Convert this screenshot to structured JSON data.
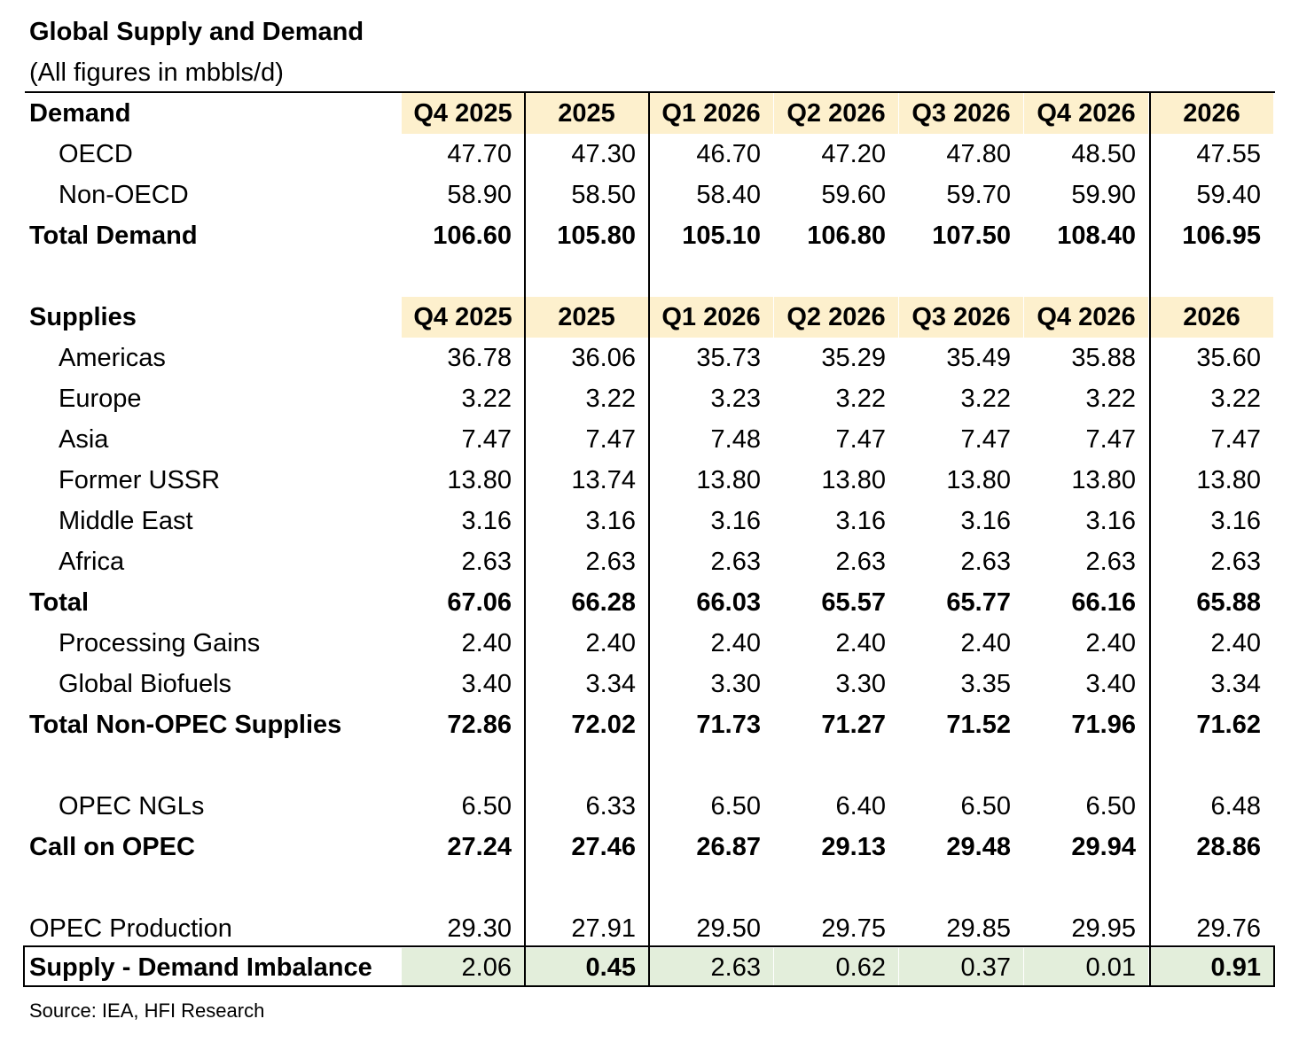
{
  "title": "Global Supply and Demand",
  "subtitle": "(All figures in mbbls/d)",
  "columns": [
    "Q4 2025",
    "2025",
    "Q1 2026",
    "Q2 2026",
    "Q3 2026",
    "Q4 2026",
    "2026"
  ],
  "colors": {
    "header_fill": "#fdf0cd",
    "imbalance_fill": "#e3eedb"
  },
  "demand": {
    "header": "Demand",
    "rows": [
      {
        "label": "OECD",
        "values": [
          "47.70",
          "47.30",
          "46.70",
          "47.20",
          "47.80",
          "48.50",
          "47.55"
        ]
      },
      {
        "label": "Non-OECD",
        "values": [
          "58.90",
          "58.50",
          "58.40",
          "59.60",
          "59.70",
          "59.90",
          "59.40"
        ]
      },
      {
        "label": "Total Demand",
        "values": [
          "106.60",
          "105.80",
          "105.10",
          "106.80",
          "107.50",
          "108.40",
          "106.95"
        ]
      }
    ]
  },
  "supplies": {
    "header": "Supplies",
    "rows": [
      {
        "label": "Americas",
        "values": [
          "36.78",
          "36.06",
          "35.73",
          "35.29",
          "35.49",
          "35.88",
          "35.60"
        ]
      },
      {
        "label": "Europe",
        "values": [
          "3.22",
          "3.22",
          "3.23",
          "3.22",
          "3.22",
          "3.22",
          "3.22"
        ]
      },
      {
        "label": "Asia",
        "values": [
          "7.47",
          "7.47",
          "7.48",
          "7.47",
          "7.47",
          "7.47",
          "7.47"
        ]
      },
      {
        "label": "Former USSR",
        "values": [
          "13.80",
          "13.74",
          "13.80",
          "13.80",
          "13.80",
          "13.80",
          "13.80"
        ]
      },
      {
        "label": "Middle East",
        "values": [
          "3.16",
          "3.16",
          "3.16",
          "3.16",
          "3.16",
          "3.16",
          "3.16"
        ]
      },
      {
        "label": "Africa",
        "values": [
          "2.63",
          "2.63",
          "2.63",
          "2.63",
          "2.63",
          "2.63",
          "2.63"
        ]
      },
      {
        "label": "Total",
        "values": [
          "67.06",
          "66.28",
          "66.03",
          "65.57",
          "65.77",
          "66.16",
          "65.88"
        ]
      },
      {
        "label": "Processing Gains",
        "values": [
          "2.40",
          "2.40",
          "2.40",
          "2.40",
          "2.40",
          "2.40",
          "2.40"
        ]
      },
      {
        "label": "Global Biofuels",
        "values": [
          "3.40",
          "3.34",
          "3.30",
          "3.30",
          "3.35",
          "3.40",
          "3.34"
        ]
      },
      {
        "label": "Total Non-OPEC Supplies",
        "values": [
          "72.86",
          "72.02",
          "71.73",
          "71.27",
          "71.52",
          "71.96",
          "71.62"
        ]
      }
    ]
  },
  "opec": {
    "rows": [
      {
        "label": "OPEC NGLs",
        "values": [
          "6.50",
          "6.33",
          "6.50",
          "6.40",
          "6.50",
          "6.50",
          "6.48"
        ]
      },
      {
        "label": "Call on OPEC",
        "values": [
          "27.24",
          "27.46",
          "26.87",
          "29.13",
          "29.48",
          "29.94",
          "28.86"
        ]
      },
      {
        "label": "OPEC Production",
        "values": [
          "29.30",
          "27.91",
          "29.50",
          "29.75",
          "29.85",
          "29.95",
          "29.76"
        ]
      },
      {
        "label": "Supply - Demand Imbalance",
        "values": [
          "2.06",
          "0.45",
          "2.63",
          "0.62",
          "0.37",
          "0.01",
          "0.91"
        ]
      }
    ]
  },
  "source": "Source: IEA, HFI Research"
}
